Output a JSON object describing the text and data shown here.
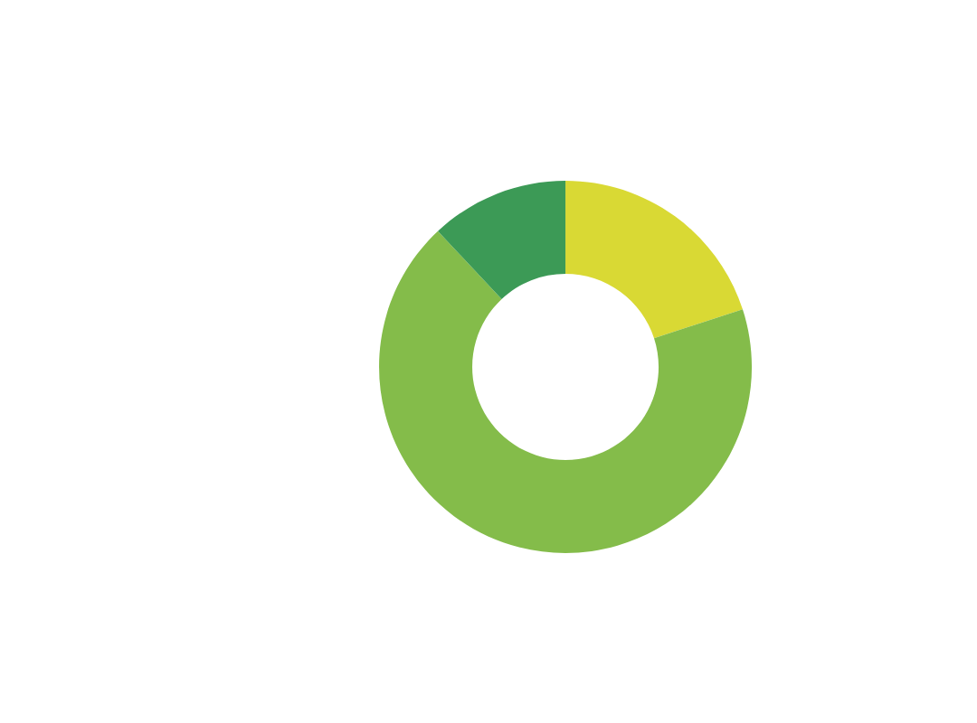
{
  "chart_data": {
    "type": "donut",
    "categories": [
      null,
      null,
      null
    ],
    "values": [
      20,
      68,
      12
    ],
    "colors": [
      "#d9d934",
      "#84bc4a",
      "#3c9a56"
    ]
  }
}
